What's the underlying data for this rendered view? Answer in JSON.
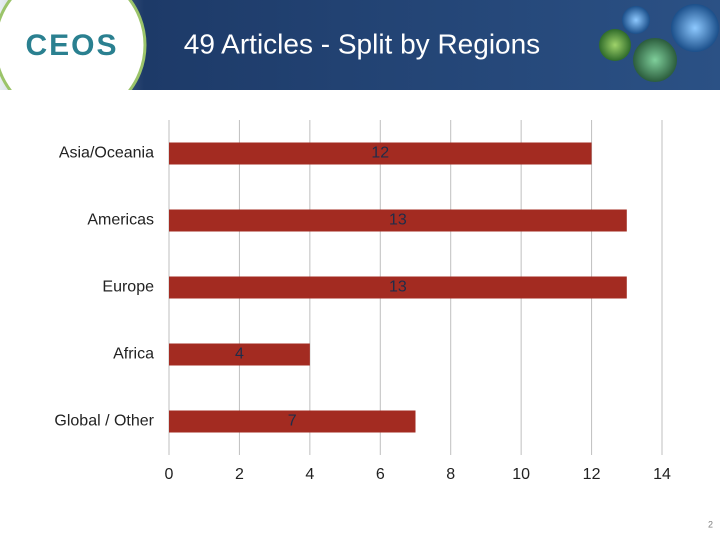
{
  "logo": "CEOS",
  "page_number": 2,
  "chart_data": {
    "type": "bar",
    "orientation": "horizontal",
    "title": "49 Articles - Split by Regions",
    "categories": [
      "Asia/Oceania",
      "Americas",
      "Europe",
      "Africa",
      "Global / Other"
    ],
    "values": [
      12,
      13,
      13,
      4,
      7
    ],
    "color": "#a32b21",
    "xlim": [
      0,
      14
    ],
    "xticks": [
      0,
      2,
      4,
      6,
      8,
      10,
      12,
      14
    ],
    "grid": true
  }
}
